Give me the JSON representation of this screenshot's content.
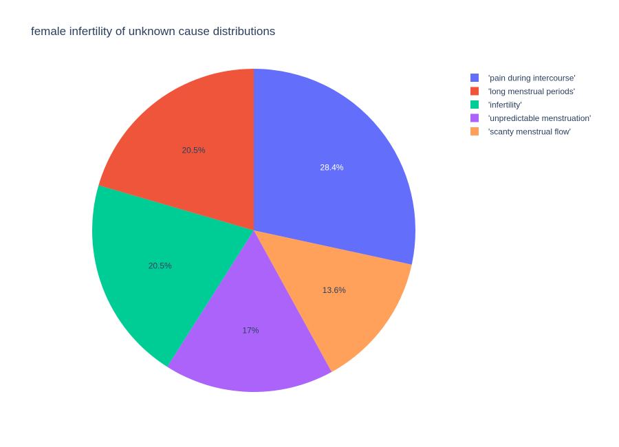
{
  "chart_data": {
    "type": "pie",
    "title": "female infertility of unknown cause distributions",
    "slices": [
      {
        "label": "'pain during intercourse'",
        "value": 28.4,
        "display": "28.4%",
        "color": "#636efa",
        "label_color": "#ffffff"
      },
      {
        "label": "'scanty menstrual flow'",
        "value": 13.6,
        "display": "13.6%",
        "color": "#ffa15a",
        "label_color": "#2a3f5f"
      },
      {
        "label": "'unpredictable menstruation'",
        "value": 17,
        "display": "17%",
        "color": "#ab63fa",
        "label_color": "#2a3f5f"
      },
      {
        "label": "'infertility'",
        "value": 20.5,
        "display": "20.5%",
        "color": "#00cc96",
        "label_color": "#2a3f5f"
      },
      {
        "label": "'long menstrual periods'",
        "value": 20.5,
        "display": "20.5%",
        "color": "#ef553b",
        "label_color": "#2a3f5f"
      }
    ],
    "legend": {
      "placement": "top-right",
      "entries": [
        {
          "label": "'pain during intercourse'",
          "color": "#636efa"
        },
        {
          "label": "'long menstrual periods'",
          "color": "#ef553b"
        },
        {
          "label": "'infertility'",
          "color": "#00cc96"
        },
        {
          "label": "'unpredictable menstruation'",
          "color": "#ab63fa"
        },
        {
          "label": "'scanty menstrual flow'",
          "color": "#ffa15a"
        }
      ]
    },
    "direction": "clockwise",
    "start_angle": "12 o'clock"
  }
}
